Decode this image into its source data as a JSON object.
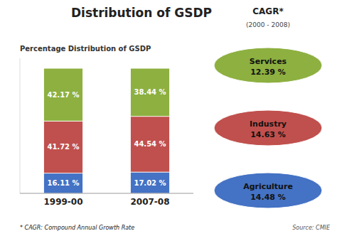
{
  "chart_data": {
    "type": "bar",
    "stacked": true,
    "title": "Distribution of GSDP",
    "subtitle": "Percentage Distribution of GSDP",
    "categories": [
      "1999-00",
      "2007-08"
    ],
    "series": [
      {
        "color": "#4472C4",
        "values": [
          16.11,
          17.02
        ],
        "value_labels": [
          "16.11 %",
          "17.02 %"
        ]
      },
      {
        "color": "#C0504D",
        "values": [
          41.72,
          44.54
        ],
        "value_labels": [
          "41.72 %",
          "44.54 %"
        ]
      },
      {
        "color": "#8DB040",
        "values": [
          42.17,
          38.44
        ],
        "value_labels": [
          "42.17 %",
          "38.44 %"
        ]
      }
    ],
    "ylim": [
      0,
      108
    ],
    "tick_labels": "x",
    "data_labels": true,
    "grid": false,
    "annotations": [
      {
        "text": "CAGR*"
      },
      {
        "text": "(2000 - 2008)"
      },
      {
        "text": "Services",
        "value": 12.39,
        "label": "12.39 %",
        "color": "#8DB040"
      },
      {
        "text": "Industry",
        "value": 14.63,
        "label": "14.63 %",
        "color": "#C0504D"
      },
      {
        "text": "Agriculture",
        "value": 14.48,
        "label": "14.48 %",
        "color": "#4472C4"
      },
      {
        "text": "* CAGR: Compound Annual Growth Rate"
      },
      {
        "text": "Source: CMIE"
      }
    ]
  }
}
